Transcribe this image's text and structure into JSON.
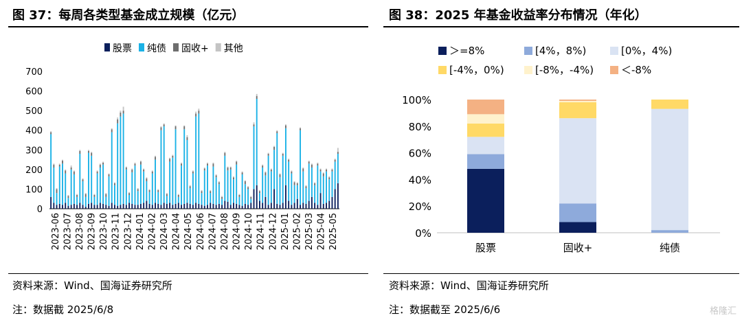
{
  "left": {
    "title": "图 37：每周各类型基金成立规模（亿元）",
    "source": "资料来源：Wind、国海证券研究所",
    "note": "注：数据截 2025/6/8"
  },
  "right": {
    "title": "图 38：2025 年基金收益率分布情况（年化）",
    "source": "资料来源：Wind、国海证券研究所",
    "note": "注：数据截至 2025/6/6"
  },
  "watermark": "格隆汇",
  "chart_data": [
    {
      "type": "bar",
      "stacked": true,
      "ylim": [
        0,
        700
      ],
      "yticks": [
        0,
        100,
        200,
        300,
        400,
        500,
        600,
        700
      ],
      "legend_position": "top",
      "x_tick_labels": [
        "2023-06",
        "2023-07",
        "2023-08",
        "2023-09",
        "2023-10",
        "2023-11",
        "2023-12",
        "2024-01",
        "2024-02",
        "2024-03",
        "2024-04",
        "2024-05",
        "2024-06",
        "2024-07",
        "2024-08",
        "2024-09",
        "2024-10",
        "2024-11",
        "2024-12",
        "2025-01",
        "2025-02",
        "2025-03",
        "2025-04",
        "2025-05"
      ],
      "series": [
        {
          "name": "股票",
          "color": "#0b1f5c",
          "values": [
            60,
            30,
            20,
            25,
            20,
            30,
            15,
            20,
            25,
            20,
            30,
            20,
            10,
            25,
            30,
            20,
            20,
            30,
            25,
            20,
            15,
            30,
            20,
            15,
            20,
            25,
            20,
            30,
            25,
            20,
            20,
            25,
            30,
            40,
            25,
            20,
            30,
            25,
            20,
            30,
            25,
            30,
            20,
            25,
            30,
            20,
            25,
            30,
            25,
            20,
            30,
            25,
            20,
            15,
            20,
            30,
            25,
            20,
            25,
            20,
            40,
            35,
            20,
            30,
            25,
            20,
            15,
            25,
            20,
            30,
            100,
            120,
            40,
            30,
            60,
            20,
            30,
            100,
            25,
            20,
            30,
            120,
            40,
            20,
            30,
            50,
            20,
            30,
            25,
            40,
            60,
            30,
            20,
            80,
            25,
            30,
            40,
            60,
            100,
            130
          ]
        },
        {
          "name": "纯债",
          "color": "#1bb2e6",
          "values": [
            320,
            180,
            60,
            190,
            210,
            150,
            40,
            180,
            150,
            40,
            250,
            120,
            50,
            260,
            240,
            40,
            160,
            180,
            200,
            40,
            150,
            360,
            100,
            420,
            450,
            460,
            180,
            40,
            160,
            200,
            70,
            200,
            160,
            100,
            60,
            160,
            220,
            60,
            380,
            390,
            40,
            210,
            240,
            380,
            30,
            200,
            380,
            320,
            80,
            160,
            440,
            460,
            60,
            180,
            200,
            50,
            190,
            140,
            100,
            30,
            230,
            160,
            180,
            120,
            200,
            40,
            160,
            100,
            80,
            20,
            320,
            440,
            40,
            180,
            110,
            250,
            160,
            200,
            360,
            140,
            240,
            290,
            200,
            160,
            90,
            70,
            380,
            160,
            80,
            190,
            150,
            90,
            200,
            110,
            140,
            160,
            110,
            130,
            140,
            150
          ]
        },
        {
          "name": "固收+",
          "color": "#6e6e6e",
          "values": [
            10,
            15,
            20,
            10,
            15,
            15,
            10,
            10,
            15,
            10,
            15,
            10,
            15,
            10,
            15,
            10,
            10,
            15,
            10,
            15,
            10,
            15,
            10,
            20,
            20,
            15,
            10,
            10,
            15,
            10,
            10,
            15,
            10,
            15,
            10,
            10,
            15,
            10,
            15,
            10,
            10,
            15,
            10,
            15,
            10,
            10,
            15,
            15,
            10,
            10,
            15,
            15,
            10,
            10,
            10,
            10,
            15,
            10,
            10,
            10,
            15,
            15,
            10,
            10,
            15,
            10,
            10,
            15,
            10,
            10,
            10,
            15,
            10,
            10,
            15,
            10,
            10,
            15,
            10,
            15,
            10,
            15,
            10,
            10,
            15,
            10,
            10,
            15,
            10,
            10,
            15,
            10,
            10,
            10,
            15,
            10,
            10,
            10,
            10,
            10
          ]
        },
        {
          "name": "其他",
          "color": "#c4c4c4",
          "values": [
            5,
            5,
            5,
            5,
            5,
            5,
            5,
            10,
            5,
            5,
            5,
            5,
            5,
            5,
            5,
            5,
            5,
            5,
            5,
            5,
            5,
            5,
            5,
            10,
            10,
            20,
            5,
            5,
            5,
            5,
            5,
            5,
            5,
            5,
            5,
            5,
            5,
            5,
            5,
            5,
            5,
            5,
            5,
            5,
            5,
            5,
            5,
            10,
            5,
            5,
            10,
            10,
            5,
            5,
            5,
            5,
            5,
            5,
            5,
            5,
            5,
            5,
            5,
            5,
            5,
            5,
            5,
            5,
            5,
            5,
            10,
            10,
            5,
            5,
            5,
            5,
            5,
            5,
            5,
            5,
            5,
            5,
            5,
            5,
            5,
            5,
            5,
            5,
            5,
            5,
            5,
            5,
            5,
            5,
            5,
            5,
            5,
            5,
            5,
            20
          ]
        }
      ]
    },
    {
      "type": "bar",
      "stacked": true,
      "percent": true,
      "ylim": [
        0,
        100
      ],
      "yticks": [
        "0%",
        "20%",
        "40%",
        "60%",
        "80%",
        "100%"
      ],
      "categories": [
        "股票",
        "固收+",
        "纯债"
      ],
      "legend_position": "top",
      "series": [
        {
          "name": "＞=8%",
          "color": "#0b1f5c",
          "values": [
            48,
            8,
            0
          ]
        },
        {
          "name": "[4%，8%)",
          "color": "#8eaadb",
          "values": [
            11,
            14,
            2
          ]
        },
        {
          "name": "[0%，4%)",
          "color": "#dae3f3",
          "values": [
            13,
            64,
            91
          ]
        },
        {
          "name": "[-4%，0%)",
          "color": "#ffd966",
          "values": [
            10,
            12,
            7
          ]
        },
        {
          "name": "[-8%，-4%)",
          "color": "#fff2cc",
          "values": [
            7,
            1,
            0
          ]
        },
        {
          "name": "＜-8%",
          "color": "#f4b183",
          "values": [
            11,
            1,
            0
          ]
        }
      ]
    }
  ]
}
